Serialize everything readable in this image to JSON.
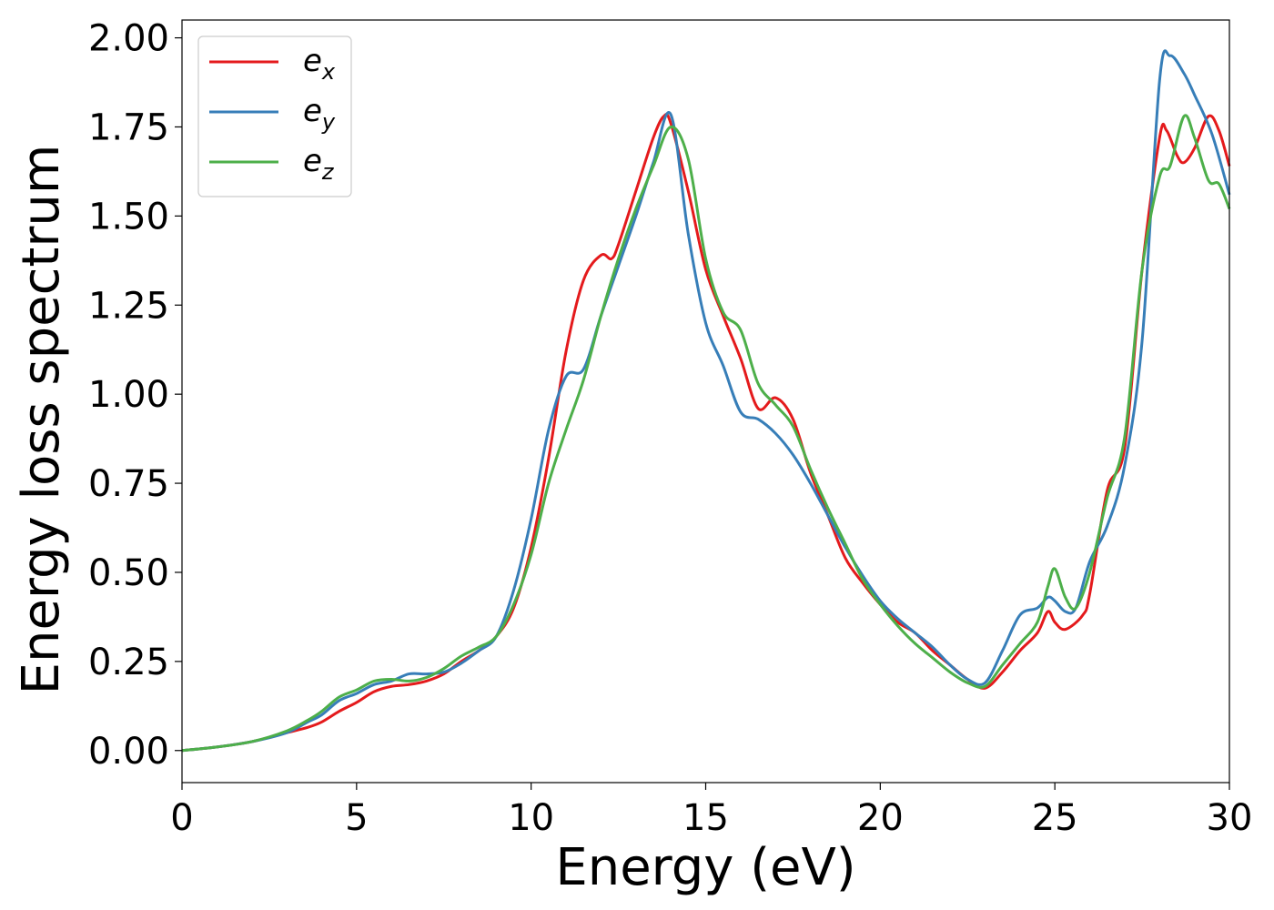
{
  "chart_data": {
    "type": "line",
    "xlabel": "Energy (eV)",
    "ylabel": "Energy loss spectrum",
    "xlim": [
      0,
      30
    ],
    "ylim": [
      -0.09,
      2.05
    ],
    "x_ticks": [
      0,
      5,
      10,
      15,
      20,
      25,
      30
    ],
    "y_ticks": [
      0.0,
      0.25,
      0.5,
      0.75,
      1.0,
      1.25,
      1.5,
      1.75,
      2.0
    ],
    "x_tick_labels": [
      "0",
      "5",
      "10",
      "15",
      "20",
      "25",
      "30"
    ],
    "y_tick_labels": [
      "0.00",
      "0.25",
      "0.50",
      "0.75",
      "1.00",
      "1.25",
      "1.50",
      "1.75",
      "2.00"
    ],
    "grid": false,
    "legend_position": "top-left",
    "series": [
      {
        "name_base": "e",
        "name_sub": "x",
        "color": "#e41a1c",
        "points": [
          [
            0,
            0.0
          ],
          [
            1,
            0.01
          ],
          [
            2,
            0.025
          ],
          [
            3,
            0.05
          ],
          [
            3.6,
            0.065
          ],
          [
            4,
            0.08
          ],
          [
            4.5,
            0.11
          ],
          [
            5,
            0.135
          ],
          [
            5.5,
            0.165
          ],
          [
            6,
            0.18
          ],
          [
            6.5,
            0.185
          ],
          [
            7,
            0.195
          ],
          [
            7.5,
            0.215
          ],
          [
            8,
            0.25
          ],
          [
            8.5,
            0.28
          ],
          [
            9,
            0.32
          ],
          [
            9.5,
            0.4
          ],
          [
            10,
            0.57
          ],
          [
            10.5,
            0.82
          ],
          [
            11,
            1.12
          ],
          [
            11.5,
            1.32
          ],
          [
            12,
            1.39
          ],
          [
            12.3,
            1.38
          ],
          [
            12.5,
            1.42
          ],
          [
            13,
            1.57
          ],
          [
            13.5,
            1.72
          ],
          [
            13.8,
            1.78
          ],
          [
            14,
            1.76
          ],
          [
            14.5,
            1.57
          ],
          [
            15,
            1.35
          ],
          [
            15.5,
            1.22
          ],
          [
            16,
            1.1
          ],
          [
            16.5,
            0.96
          ],
          [
            17,
            0.99
          ],
          [
            17.5,
            0.93
          ],
          [
            18,
            0.78
          ],
          [
            18.5,
            0.66
          ],
          [
            19,
            0.54
          ],
          [
            19.5,
            0.47
          ],
          [
            20,
            0.41
          ],
          [
            20.5,
            0.36
          ],
          [
            21,
            0.33
          ],
          [
            21.5,
            0.28
          ],
          [
            22,
            0.24
          ],
          [
            22.5,
            0.2
          ],
          [
            23,
            0.175
          ],
          [
            23.5,
            0.22
          ],
          [
            24,
            0.28
          ],
          [
            24.5,
            0.33
          ],
          [
            24.8,
            0.39
          ],
          [
            25,
            0.36
          ],
          [
            25.3,
            0.34
          ],
          [
            25.8,
            0.38
          ],
          [
            26,
            0.44
          ],
          [
            26.5,
            0.73
          ],
          [
            27,
            0.85
          ],
          [
            27.5,
            1.35
          ],
          [
            28,
            1.72
          ],
          [
            28.2,
            1.74
          ],
          [
            28.5,
            1.67
          ],
          [
            28.7,
            1.65
          ],
          [
            29,
            1.69
          ],
          [
            29.4,
            1.78
          ],
          [
            29.7,
            1.74
          ],
          [
            30,
            1.64
          ]
        ]
      },
      {
        "name_base": "e",
        "name_sub": "y",
        "color": "#377eb8",
        "points": [
          [
            0,
            0.0
          ],
          [
            1,
            0.01
          ],
          [
            2,
            0.025
          ],
          [
            3,
            0.05
          ],
          [
            3.6,
            0.08
          ],
          [
            4,
            0.1
          ],
          [
            4.5,
            0.14
          ],
          [
            5,
            0.16
          ],
          [
            5.5,
            0.185
          ],
          [
            6,
            0.195
          ],
          [
            6.5,
            0.215
          ],
          [
            7,
            0.215
          ],
          [
            7.5,
            0.22
          ],
          [
            8,
            0.245
          ],
          [
            8.5,
            0.28
          ],
          [
            9,
            0.32
          ],
          [
            9.5,
            0.45
          ],
          [
            10,
            0.65
          ],
          [
            10.5,
            0.9
          ],
          [
            11,
            1.05
          ],
          [
            11.5,
            1.07
          ],
          [
            12,
            1.22
          ],
          [
            12.5,
            1.36
          ],
          [
            13,
            1.5
          ],
          [
            13.5,
            1.65
          ],
          [
            14,
            1.785
          ],
          [
            14.5,
            1.45
          ],
          [
            15,
            1.2
          ],
          [
            15.5,
            1.08
          ],
          [
            16,
            0.95
          ],
          [
            16.5,
            0.93
          ],
          [
            17,
            0.89
          ],
          [
            17.5,
            0.83
          ],
          [
            18,
            0.75
          ],
          [
            18.5,
            0.66
          ],
          [
            19,
            0.57
          ],
          [
            19.5,
            0.49
          ],
          [
            20,
            0.42
          ],
          [
            20.5,
            0.37
          ],
          [
            21,
            0.33
          ],
          [
            21.5,
            0.29
          ],
          [
            22,
            0.24
          ],
          [
            22.5,
            0.2
          ],
          [
            23,
            0.19
          ],
          [
            23.5,
            0.28
          ],
          [
            24,
            0.38
          ],
          [
            24.5,
            0.4
          ],
          [
            24.8,
            0.43
          ],
          [
            25,
            0.42
          ],
          [
            25.3,
            0.39
          ],
          [
            25.6,
            0.4
          ],
          [
            26,
            0.53
          ],
          [
            26.5,
            0.63
          ],
          [
            27,
            0.8
          ],
          [
            27.5,
            1.15
          ],
          [
            28,
            1.88
          ],
          [
            28.3,
            1.95
          ],
          [
            28.7,
            1.9
          ],
          [
            29,
            1.84
          ],
          [
            29.5,
            1.73
          ],
          [
            30,
            1.56
          ]
        ]
      },
      {
        "name_base": "e",
        "name_sub": "z",
        "color": "#4daf4a",
        "points": [
          [
            0,
            0.0
          ],
          [
            1,
            0.01
          ],
          [
            2,
            0.025
          ],
          [
            3,
            0.055
          ],
          [
            3.6,
            0.085
          ],
          [
            4,
            0.11
          ],
          [
            4.5,
            0.15
          ],
          [
            5,
            0.17
          ],
          [
            5.5,
            0.195
          ],
          [
            6,
            0.2
          ],
          [
            6.5,
            0.195
          ],
          [
            7,
            0.205
          ],
          [
            7.5,
            0.23
          ],
          [
            8,
            0.265
          ],
          [
            8.5,
            0.29
          ],
          [
            9,
            0.32
          ],
          [
            9.5,
            0.41
          ],
          [
            10,
            0.55
          ],
          [
            10.5,
            0.75
          ],
          [
            11,
            0.9
          ],
          [
            11.5,
            1.04
          ],
          [
            12,
            1.22
          ],
          [
            12.5,
            1.38
          ],
          [
            13,
            1.52
          ],
          [
            13.5,
            1.64
          ],
          [
            14,
            1.75
          ],
          [
            14.5,
            1.66
          ],
          [
            15,
            1.38
          ],
          [
            15.5,
            1.23
          ],
          [
            16,
            1.18
          ],
          [
            16.5,
            1.03
          ],
          [
            17,
            0.97
          ],
          [
            17.5,
            0.91
          ],
          [
            18,
            0.79
          ],
          [
            18.5,
            0.68
          ],
          [
            19,
            0.58
          ],
          [
            19.5,
            0.48
          ],
          [
            20,
            0.41
          ],
          [
            20.5,
            0.35
          ],
          [
            21,
            0.3
          ],
          [
            21.5,
            0.26
          ],
          [
            22,
            0.22
          ],
          [
            22.5,
            0.19
          ],
          [
            23,
            0.18
          ],
          [
            23.5,
            0.24
          ],
          [
            24,
            0.3
          ],
          [
            24.5,
            0.36
          ],
          [
            24.8,
            0.46
          ],
          [
            25,
            0.51
          ],
          [
            25.3,
            0.43
          ],
          [
            25.6,
            0.4
          ],
          [
            26,
            0.5
          ],
          [
            26.5,
            0.71
          ],
          [
            27,
            0.88
          ],
          [
            27.5,
            1.35
          ],
          [
            28,
            1.61
          ],
          [
            28.3,
            1.64
          ],
          [
            28.7,
            1.78
          ],
          [
            29,
            1.72
          ],
          [
            29.4,
            1.6
          ],
          [
            29.7,
            1.59
          ],
          [
            30,
            1.52
          ]
        ]
      }
    ]
  }
}
